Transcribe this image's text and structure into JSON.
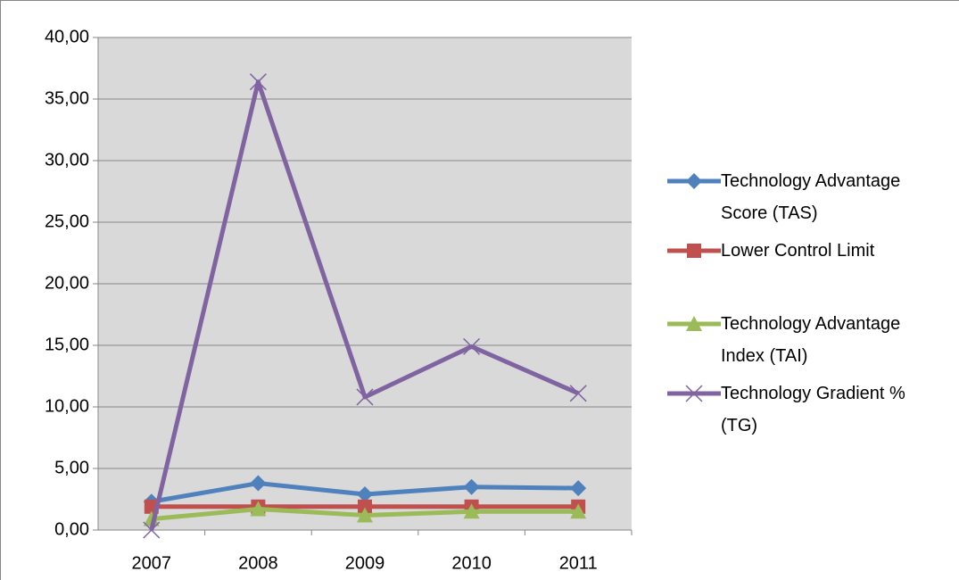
{
  "chart_data": {
    "type": "line",
    "categories": [
      "2007",
      "2008",
      "2009",
      "2010",
      "2011"
    ],
    "series": [
      {
        "name": "Technology Advantage Score (TAS)",
        "color": "#4f81bd",
        "marker": "diamond",
        "values": [
          2.3,
          3.8,
          2.9,
          3.5,
          3.4
        ]
      },
      {
        "name": "Lower Control Limit",
        "color": "#c0504d",
        "marker": "square",
        "values": [
          1.9,
          1.9,
          1.9,
          1.9,
          1.9
        ]
      },
      {
        "name": "Technology Advantage Index (TAI)",
        "color": "#9bbb59",
        "marker": "triangle",
        "values": [
          0.9,
          1.7,
          1.2,
          1.5,
          1.5
        ]
      },
      {
        "name": "Technology Gradient % (TG)",
        "color": "#8064a2",
        "marker": "x",
        "values": [
          0,
          36.4,
          10.8,
          14.9,
          11.1
        ]
      }
    ],
    "ylim": [
      0,
      40
    ],
    "yticks": [
      {
        "value": 0,
        "label": "0,00"
      },
      {
        "value": 5,
        "label": "5,00"
      },
      {
        "value": 10,
        "label": "10,00"
      },
      {
        "value": 15,
        "label": "15,00"
      },
      {
        "value": 20,
        "label": "20,00"
      },
      {
        "value": 25,
        "label": "25,00"
      },
      {
        "value": 30,
        "label": "30,00"
      },
      {
        "value": 35,
        "label": "35,00"
      },
      {
        "value": 40,
        "label": "40,00"
      }
    ],
    "grid": true,
    "legend": "right"
  }
}
